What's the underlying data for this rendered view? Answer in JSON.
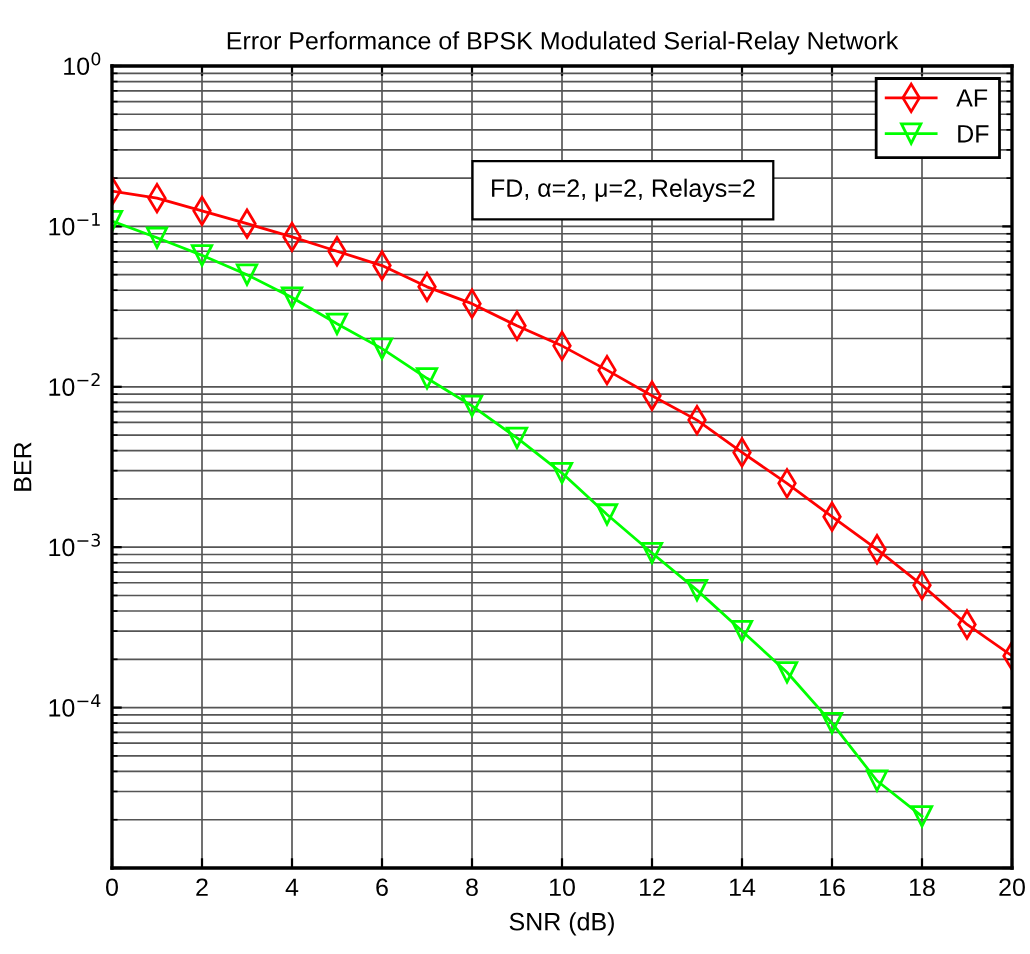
{
  "chart_data": {
    "type": "line",
    "title": "Error Performance of BPSK Modulated Serial-Relay Network",
    "xlabel": "SNR (dB)",
    "ylabel": "BER",
    "x": [
      0,
      1,
      2,
      3,
      4,
      5,
      6,
      7,
      8,
      9,
      10,
      11,
      12,
      13,
      14,
      15,
      16,
      17,
      18,
      19,
      20
    ],
    "series": [
      {
        "name": "AF",
        "color": "#ff0000",
        "marker": "diamond",
        "values": [
          0.166,
          0.15,
          0.125,
          0.104,
          0.086,
          0.07,
          0.057,
          0.042,
          0.033,
          0.024,
          0.018,
          0.0127,
          0.0088,
          0.0062,
          0.0039,
          0.0025,
          0.00155,
          0.00097,
          0.00058,
          0.00033,
          0.00021
        ]
      },
      {
        "name": "DF",
        "color": "#00ff00",
        "marker": "triangle",
        "values": [
          0.108,
          0.085,
          0.066,
          0.05,
          0.036,
          0.0247,
          0.0173,
          0.0113,
          0.0076,
          0.0048,
          0.0029,
          0.0016,
          0.00092,
          0.00054,
          0.0003,
          0.000166,
          8e-05,
          3.5e-05,
          2.1e-05,
          null,
          null
        ]
      }
    ],
    "log": "y",
    "xlim": [
      0,
      20
    ],
    "xticks": [
      0,
      2,
      4,
      6,
      8,
      10,
      12,
      14,
      16,
      18,
      20
    ],
    "ylim": [
      1e-05,
      1
    ],
    "yticks": [
      {
        "value": 1e-05,
        "label": null
      },
      {
        "value": 0.0001,
        "label": "10$^{−4}$"
      },
      {
        "value": 0.001,
        "label": "10$^{−3}$"
      },
      {
        "value": 0.01,
        "label": "10$^{−2}$"
      },
      {
        "value": 0.1,
        "label": "10$^{−1}$"
      },
      {
        "value": 1,
        "label": "10$^{0}$"
      }
    ],
    "grid": true,
    "legend": "top right",
    "line_style": "solid",
    "annotations": [
      "FD, α=2, μ=2, Relays=2"
    ]
  }
}
